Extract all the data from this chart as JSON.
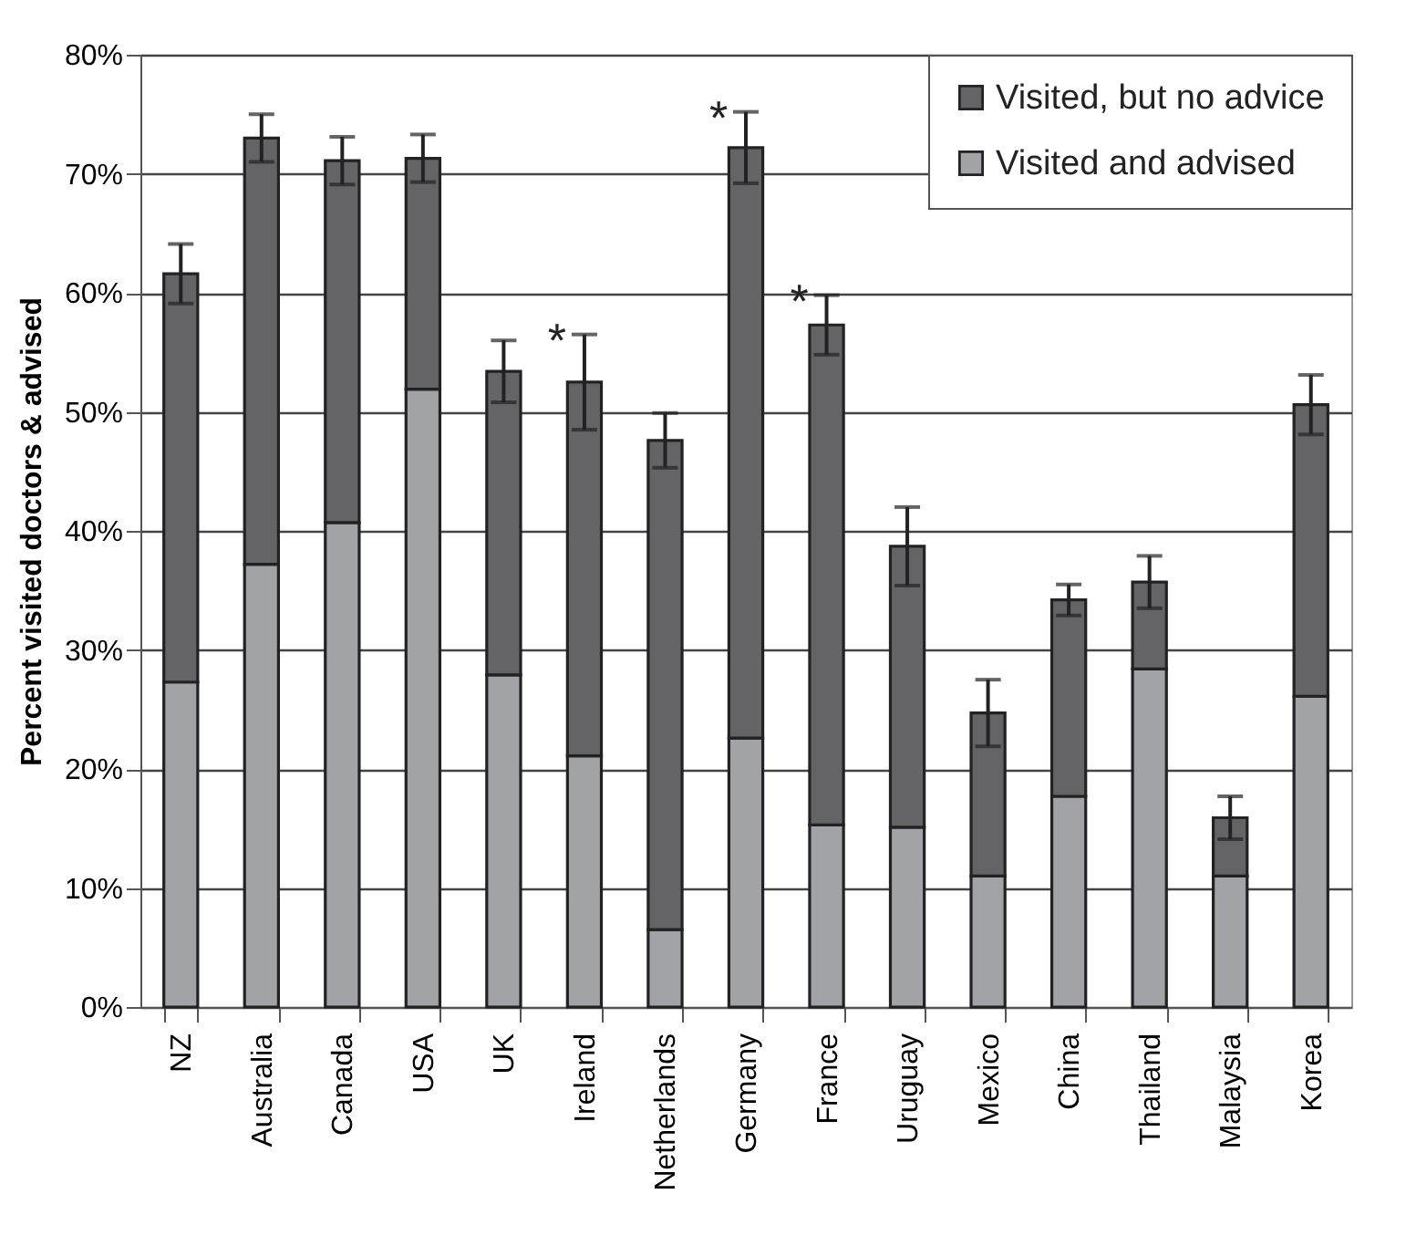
{
  "chart_data": {
    "type": "bar",
    "stacked": true,
    "ylabel": "Percent visited doctors & advised",
    "categories": [
      "NZ",
      "Australia",
      "Canada",
      "USA",
      "UK",
      "Ireland",
      "Netherlands",
      "Germany",
      "France",
      "Uruguay",
      "Mexico",
      "China",
      "Thailand",
      "Malaysia",
      "Korea"
    ],
    "series": [
      {
        "name": "Visited and advised",
        "color": "#a2a3a7",
        "values": [
          27.3,
          37.2,
          40.7,
          51.9,
          27.9,
          21.1,
          6.5,
          22.6,
          15.3,
          15.1,
          11.0,
          17.7,
          28.4,
          11.0,
          26.1
        ]
      },
      {
        "name": "Visited, but no advice",
        "color": "#646467",
        "values": [
          34.3,
          35.8,
          30.4,
          19.4,
          25.5,
          31.4,
          41.1,
          49.6,
          42.0,
          23.6,
          13.7,
          16.5,
          7.3,
          4.9,
          24.5
        ],
        "errors": [
          2.5,
          2.0,
          2.0,
          2.0,
          2.6,
          4.0,
          2.3,
          3.0,
          2.5,
          3.3,
          2.8,
          1.3,
          2.2,
          1.8,
          2.5
        ]
      }
    ],
    "ylim": [
      0,
      80
    ],
    "yticks": [
      {
        "value": 0,
        "label": "0%"
      },
      {
        "value": 10,
        "label": "10%"
      },
      {
        "value": 20,
        "label": "20%"
      },
      {
        "value": 30,
        "label": "30%"
      },
      {
        "value": 40,
        "label": "40%"
      },
      {
        "value": 50,
        "label": "50%"
      },
      {
        "value": 60,
        "label": "60%"
      },
      {
        "value": 70,
        "label": "70%"
      },
      {
        "value": 80,
        "label": "80%"
      }
    ],
    "grid": "y",
    "legend": "top right",
    "annotations": [
      {
        "text": "*",
        "x": "Ireland",
        "y": 56.5
      },
      {
        "text": "*",
        "x": "Germany",
        "y": 75.2
      },
      {
        "text": "*",
        "x": "France",
        "y": 59.8
      }
    ]
  }
}
